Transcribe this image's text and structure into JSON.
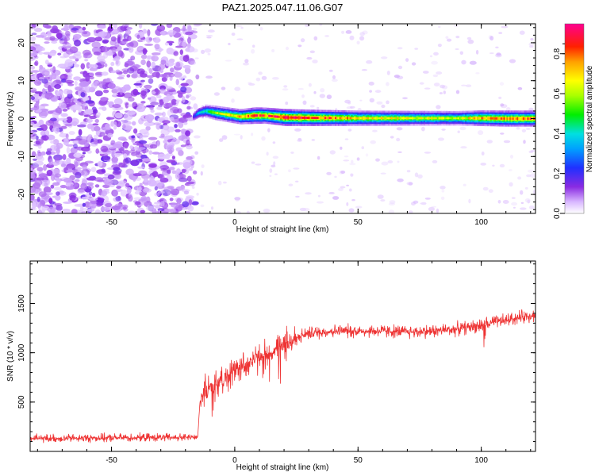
{
  "title": "PAZ1.2025.047.11.06.G07",
  "chart_data": [
    {
      "type": "heatmap",
      "xlabel": "Height of straight line (km)",
      "ylabel": "Frequency (Hz)",
      "xlim": [
        -83,
        122
      ],
      "ylim": [
        -25,
        25
      ],
      "xticks": [
        -50,
        0,
        50,
        100
      ],
      "yticks": [
        -20,
        -10,
        0,
        10,
        20
      ],
      "ytick_labels": [
        "-20",
        "-10",
        "0",
        "10",
        "20"
      ],
      "xtick_labels": [
        "-50",
        "0",
        "50",
        "100"
      ],
      "colorbar": {
        "label": "Normalized spectral amplitude",
        "range": [
          0,
          0.95
        ],
        "ticks": [
          0.0,
          0.2,
          0.4,
          0.6,
          0.8
        ],
        "tick_labels": [
          "0.0",
          "0.2",
          "0.4",
          "0.6",
          "0.8"
        ],
        "colormap": "rainbow (violet-blue-cyan-green-yellow-orange-red-magenta)"
      },
      "features": {
        "noise_region_x": [
          -83,
          -17
        ],
        "noise_amplitude": 0.15,
        "signal_ridge": [
          {
            "x": -17,
            "freq": 0.5,
            "amp": 0.2
          },
          {
            "x": -15,
            "freq": 1.5,
            "amp": 0.35
          },
          {
            "x": -12,
            "freq": 2.0,
            "amp": 0.45
          },
          {
            "x": -8,
            "freq": 1.5,
            "amp": 0.6
          },
          {
            "x": -3,
            "freq": 1.0,
            "amp": 0.65
          },
          {
            "x": 2,
            "freq": 0.5,
            "amp": 0.7
          },
          {
            "x": 8,
            "freq": 0.8,
            "amp": 0.85
          },
          {
            "x": 12,
            "freq": 0.8,
            "amp": 0.8
          },
          {
            "x": 20,
            "freq": 0.3,
            "amp": 0.9
          },
          {
            "x": 30,
            "freq": 0.2,
            "amp": 0.85
          },
          {
            "x": 50,
            "freq": 0.1,
            "amp": 0.7
          },
          {
            "x": 70,
            "freq": 0.1,
            "amp": 0.65
          },
          {
            "x": 90,
            "freq": 0.1,
            "amp": 0.6
          },
          {
            "x": 100,
            "freq": 0.1,
            "amp": 0.75
          },
          {
            "x": 110,
            "freq": 0.0,
            "amp": 0.8
          },
          {
            "x": 122,
            "freq": 0.0,
            "amp": 0.8
          }
        ]
      }
    },
    {
      "type": "line",
      "xlabel": "Height of straight line (km)",
      "ylabel": "SNR (10 * v/v)",
      "xlim": [
        -83,
        122
      ],
      "ylim": [
        0,
        1930
      ],
      "xticks": [
        -50,
        0,
        50,
        100
      ],
      "xtick_labels": [
        "-50",
        "0",
        "50",
        "100"
      ],
      "yticks": [
        500,
        1000,
        1500
      ],
      "ytick_labels": [
        "500",
        "1000",
        "1500"
      ],
      "color": "#ee3333",
      "series_trend": {
        "x": [
          -83,
          -60,
          -40,
          -20,
          -15,
          -14,
          -10,
          -5,
          0,
          5,
          10,
          15,
          20,
          25,
          30,
          40,
          50,
          60,
          70,
          80,
          90,
          100,
          110,
          120
        ],
        "y": [
          130,
          135,
          140,
          140,
          145,
          550,
          650,
          720,
          820,
          900,
          950,
          1000,
          1080,
          1150,
          1200,
          1220,
          1220,
          1220,
          1210,
          1220,
          1240,
          1280,
          1330,
          1380
        ]
      }
    }
  ]
}
